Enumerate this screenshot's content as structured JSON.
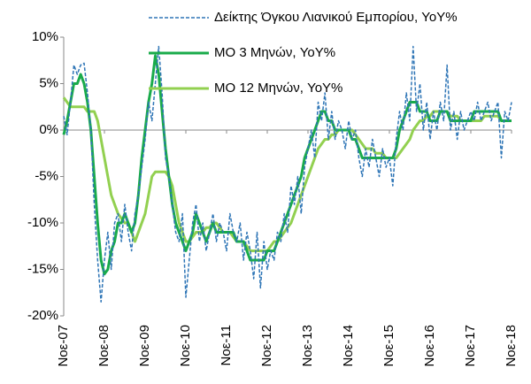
{
  "chart_data": {
    "type": "line",
    "categories": [
      "Νοε-07",
      null,
      null,
      null,
      null,
      null,
      null,
      null,
      null,
      null,
      null,
      null,
      "Νοε-08",
      null,
      null,
      null,
      null,
      null,
      null,
      null,
      null,
      null,
      null,
      null,
      "Νοε-09",
      null,
      null,
      null,
      null,
      null,
      null,
      null,
      null,
      null,
      null,
      null,
      "Νοε-10",
      null,
      null,
      null,
      null,
      null,
      null,
      null,
      null,
      null,
      null,
      null,
      "Νοε-11",
      null,
      null,
      null,
      null,
      null,
      null,
      null,
      null,
      null,
      null,
      null,
      "Νοε-12",
      null,
      null,
      null,
      null,
      null,
      null,
      null,
      null,
      null,
      null,
      null,
      "Νοε-13",
      null,
      null,
      null,
      null,
      null,
      null,
      null,
      null,
      null,
      null,
      null,
      "Νοε-14",
      null,
      null,
      null,
      null,
      null,
      null,
      null,
      null,
      null,
      null,
      null,
      "Νοε-15",
      null,
      null,
      null,
      null,
      null,
      null,
      null,
      null,
      null,
      null,
      null,
      "Νοε-16",
      null,
      null,
      null,
      null,
      null,
      null,
      null,
      null,
      null,
      null,
      null,
      "Νοε-17",
      null,
      null,
      null,
      null,
      null,
      null,
      null,
      null,
      null,
      null,
      null,
      "Νοε-18"
    ],
    "series": [
      {
        "name": "Δείκτης Όγκου Λιανικού Εμπορίου, YoY%",
        "color": "#2e75b6",
        "dashed": true,
        "values": [
          1.5,
          -0.5,
          3,
          7,
          6,
          7,
          7.2,
          4,
          0,
          -8,
          -14,
          -18.5,
          -14,
          -11,
          -15,
          -10,
          -9,
          -12,
          -8,
          -11,
          -13,
          -9,
          -7,
          -4,
          -1,
          3,
          1,
          5,
          9,
          4,
          -3,
          -5,
          -8,
          -11,
          -12,
          -9,
          -18,
          -14,
          -10,
          -8,
          -12,
          -10,
          -13,
          -11,
          -9,
          -12,
          -10,
          -11,
          -13,
          -9,
          -11,
          -12,
          -10,
          -14,
          -11,
          -13,
          -16,
          -11,
          -17,
          -12,
          -15,
          -13,
          -14,
          -11,
          -12,
          -9,
          -11,
          -6,
          -8,
          -5,
          -9,
          -4,
          -2,
          0,
          -3,
          3,
          1,
          4,
          -1,
          2,
          -1,
          1,
          0,
          -2,
          1,
          -1,
          0,
          -3,
          -5,
          -2,
          -4,
          -1,
          -3,
          -5,
          -2,
          -4,
          -3,
          -6,
          -1,
          2,
          0,
          4,
          1,
          9,
          2,
          5,
          0,
          3,
          -1,
          2,
          0,
          3,
          1,
          7,
          0,
          2,
          -1,
          2,
          0,
          1,
          2,
          1,
          3,
          1,
          2,
          3,
          1,
          2,
          3,
          -3,
          2,
          1,
          3
        ]
      },
      {
        "name": "ΜΟ 3 Μηνών, YoY%",
        "color": "#1aab4b",
        "dashed": false,
        "values": [
          -0.5,
          1,
          3,
          5,
          5,
          6,
          5,
          3,
          0,
          -5,
          -10,
          -14,
          -15.5,
          -15,
          -13,
          -12,
          -10,
          -10,
          -9,
          -10,
          -11,
          -10,
          -7,
          -3,
          0,
          3,
          5,
          8,
          6,
          2,
          -2,
          -5,
          -8,
          -10,
          -11,
          -12,
          -13,
          -12,
          -11,
          -9,
          -10,
          -11,
          -12,
          -11,
          -10,
          -11,
          -11,
          -11,
          -11,
          -11,
          -11,
          -12,
          -12,
          -12,
          -13,
          -14,
          -14,
          -14,
          -14,
          -14,
          -13,
          -13,
          -13,
          -12,
          -11,
          -10,
          -9,
          -8,
          -7,
          -6,
          -5,
          -3,
          -2,
          -1,
          0,
          1,
          2,
          2,
          1,
          1,
          0,
          0,
          0,
          0,
          0,
          -1,
          -1,
          -2,
          -3,
          -3,
          -3,
          -3,
          -3,
          -3,
          -3,
          -3,
          -3,
          -3,
          -2,
          0,
          1,
          2,
          3,
          3,
          3,
          2,
          2,
          2,
          1,
          1,
          1,
          2,
          2,
          2,
          1,
          1,
          1,
          1,
          1,
          1,
          1,
          2,
          2,
          2,
          2,
          2,
          2,
          2,
          2,
          1,
          1,
          1,
          1
        ]
      },
      {
        "name": "ΜΟ 12 Μηνών, YoY%",
        "color": "#92d050",
        "dashed": false,
        "values": [
          3.5,
          3,
          2.5,
          2.5,
          2.5,
          2.5,
          2.5,
          2,
          2,
          2,
          1,
          -1,
          -3,
          -5,
          -7,
          -8,
          -9,
          -9.5,
          -10,
          -10,
          -11,
          -12,
          -11,
          -10,
          -9,
          -7,
          -5,
          -4.5,
          -4.5,
          -4.5,
          -4.5,
          -5,
          -6,
          -8,
          -10,
          -11,
          -12,
          -12,
          -11.5,
          -11,
          -11,
          -11,
          -10.5,
          -10.5,
          -10,
          -10,
          -10.5,
          -11,
          -11,
          -11,
          -11.5,
          -12,
          -12,
          -12,
          -12.5,
          -13,
          -13,
          -13,
          -13,
          -13,
          -13,
          -12.5,
          -12,
          -12,
          -11.5,
          -11,
          -10.5,
          -10,
          -9,
          -8,
          -7,
          -6,
          -5,
          -4,
          -3,
          -2,
          -1.5,
          -1,
          -1,
          -0.5,
          -0.5,
          0,
          0,
          0,
          0,
          0,
          -0.5,
          -1,
          -1.5,
          -2,
          -2,
          -2,
          -2.5,
          -2.5,
          -2.5,
          -3,
          -3,
          -3,
          -3,
          -2.5,
          -2,
          -1.5,
          -1,
          0,
          0.5,
          1,
          1,
          1.5,
          1.5,
          2,
          2,
          2,
          2,
          2,
          1.5,
          1.5,
          1.5,
          1,
          1,
          1,
          1,
          1,
          1,
          1,
          1.5,
          1.5,
          1.5,
          1.5,
          1.5,
          1,
          1,
          1,
          1
        ]
      }
    ],
    "ylim": [
      -20,
      10
    ],
    "yticks": [
      {
        "value": -20,
        "label": "-20%"
      },
      {
        "value": -15,
        "label": "-15%"
      },
      {
        "value": -10,
        "label": "-10%"
      },
      {
        "value": -5,
        "label": "-5%"
      },
      {
        "value": 0,
        "label": "0%"
      },
      {
        "value": 5,
        "label": "5%"
      },
      {
        "value": 10,
        "label": "10%"
      }
    ],
    "grid": false
  }
}
